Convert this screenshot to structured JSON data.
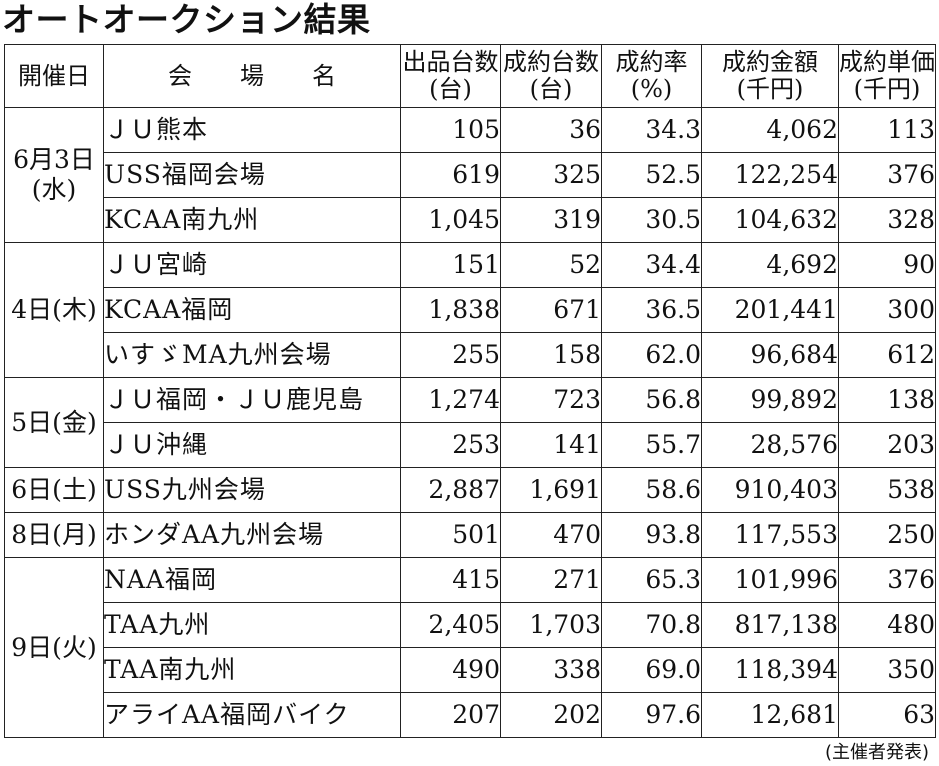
{
  "title": "オートオークション結果",
  "headers": {
    "date": "開催日",
    "venue": "会　　場　　名",
    "listed_line1": "出品台数",
    "listed_line2": "(台)",
    "sold_line1": "成約台数",
    "sold_line2": "(台)",
    "rate_line1": "成約率",
    "rate_line2": "(%)",
    "amount_line1": "成約金額",
    "amount_line2": "(千円)",
    "unit_line1": "成約単価",
    "unit_line2": "(千円)"
  },
  "groups": [
    {
      "date_line1": "6月3日",
      "date_line2": "(水)",
      "rows": [
        {
          "venue": "ＪＵ熊本",
          "listed": "105",
          "sold": "36",
          "rate": "34.3",
          "amount": "4,062",
          "unit": "113"
        },
        {
          "venue": "USS福岡会場",
          "listed": "619",
          "sold": "325",
          "rate": "52.5",
          "amount": "122,254",
          "unit": "376"
        },
        {
          "venue": "KCAA南九州",
          "listed": "1,045",
          "sold": "319",
          "rate": "30.5",
          "amount": "104,632",
          "unit": "328"
        }
      ]
    },
    {
      "date_line1": "4日(木)",
      "date_line2": "",
      "rows": [
        {
          "venue": "ＪＵ宮崎",
          "listed": "151",
          "sold": "52",
          "rate": "34.4",
          "amount": "4,692",
          "unit": "90"
        },
        {
          "venue": "KCAA福岡",
          "listed": "1,838",
          "sold": "671",
          "rate": "36.5",
          "amount": "201,441",
          "unit": "300"
        },
        {
          "venue": "いすゞMA九州会場",
          "listed": "255",
          "sold": "158",
          "rate": "62.0",
          "amount": "96,684",
          "unit": "612"
        }
      ]
    },
    {
      "date_line1": "5日(金)",
      "date_line2": "",
      "rows": [
        {
          "venue": "ＪＵ福岡・ＪＵ鹿児島",
          "listed": "1,274",
          "sold": "723",
          "rate": "56.8",
          "amount": "99,892",
          "unit": "138"
        },
        {
          "venue": "ＪＵ沖縄",
          "listed": "253",
          "sold": "141",
          "rate": "55.7",
          "amount": "28,576",
          "unit": "203"
        }
      ]
    },
    {
      "date_line1": "6日(土)",
      "date_line2": "",
      "rows": [
        {
          "venue": "USS九州会場",
          "listed": "2,887",
          "sold": "1,691",
          "rate": "58.6",
          "amount": "910,403",
          "unit": "538"
        }
      ]
    },
    {
      "date_line1": "8日(月)",
      "date_line2": "",
      "rows": [
        {
          "venue": "ホンダAA九州会場",
          "listed": "501",
          "sold": "470",
          "rate": "93.8",
          "amount": "117,553",
          "unit": "250"
        }
      ]
    },
    {
      "date_line1": "9日(火)",
      "date_line2": "",
      "rows": [
        {
          "venue": "NAA福岡",
          "listed": "415",
          "sold": "271",
          "rate": "65.3",
          "amount": "101,996",
          "unit": "376"
        },
        {
          "venue": "TAA九州",
          "listed": "2,405",
          "sold": "1,703",
          "rate": "70.8",
          "amount": "817,138",
          "unit": "480"
        },
        {
          "venue": "TAA南九州",
          "listed": "490",
          "sold": "338",
          "rate": "69.0",
          "amount": "118,394",
          "unit": "350"
        },
        {
          "venue": "アライAA福岡バイク",
          "listed": "207",
          "sold": "202",
          "rate": "97.6",
          "amount": "12,681",
          "unit": "63"
        }
      ]
    }
  ],
  "footnote": "(主催者発表)"
}
